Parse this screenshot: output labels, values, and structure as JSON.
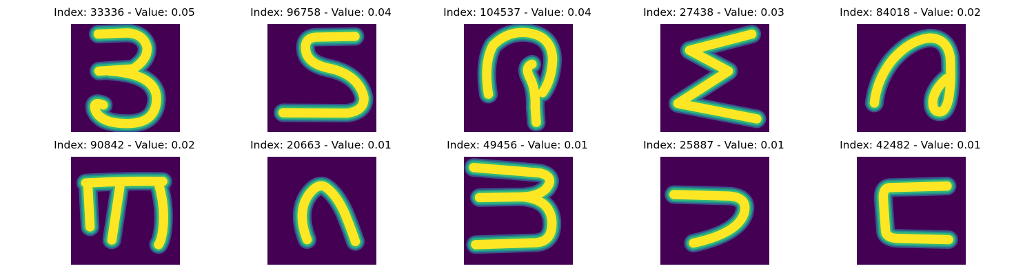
{
  "colors": {
    "background": "#440154",
    "stroke_core": "#fde725",
    "stroke_mid": "#35b779",
    "stroke_edge": "#21918c",
    "stroke_outer": "#3b528b"
  },
  "samples": [
    {
      "title": "Index: 33336 - Value: 0.05",
      "index": 33336,
      "value": 0.05,
      "glyph": "3"
    },
    {
      "title": "Index: 96758 - Value: 0.04",
      "index": 96758,
      "value": 0.04,
      "glyph": "5"
    },
    {
      "title": "Index: 104537 - Value: 0.04",
      "index": 104537,
      "value": 0.04,
      "glyph": "loop"
    },
    {
      "title": "Index: 27438 - Value: 0.03",
      "index": 27438,
      "value": 0.03,
      "glyph": "sigma"
    },
    {
      "title": "Index: 84018 - Value: 0.02",
      "index": 84018,
      "value": 0.02,
      "glyph": "hook-loop"
    },
    {
      "title": "Index: 90842 - Value: 0.02",
      "index": 90842,
      "value": 0.02,
      "glyph": "m"
    },
    {
      "title": "Index: 20663 - Value: 0.01",
      "index": 20663,
      "value": 0.01,
      "glyph": "arch"
    },
    {
      "title": "Index: 49456 - Value: 0.01",
      "index": 49456,
      "value": 0.01,
      "glyph": "3"
    },
    {
      "title": "Index: 25887 - Value: 0.01",
      "index": 25887,
      "value": 0.01,
      "glyph": "hook"
    },
    {
      "title": "Index: 42482 - Value: 0.01",
      "index": 42482,
      "value": 0.01,
      "glyph": "bracket"
    }
  ]
}
